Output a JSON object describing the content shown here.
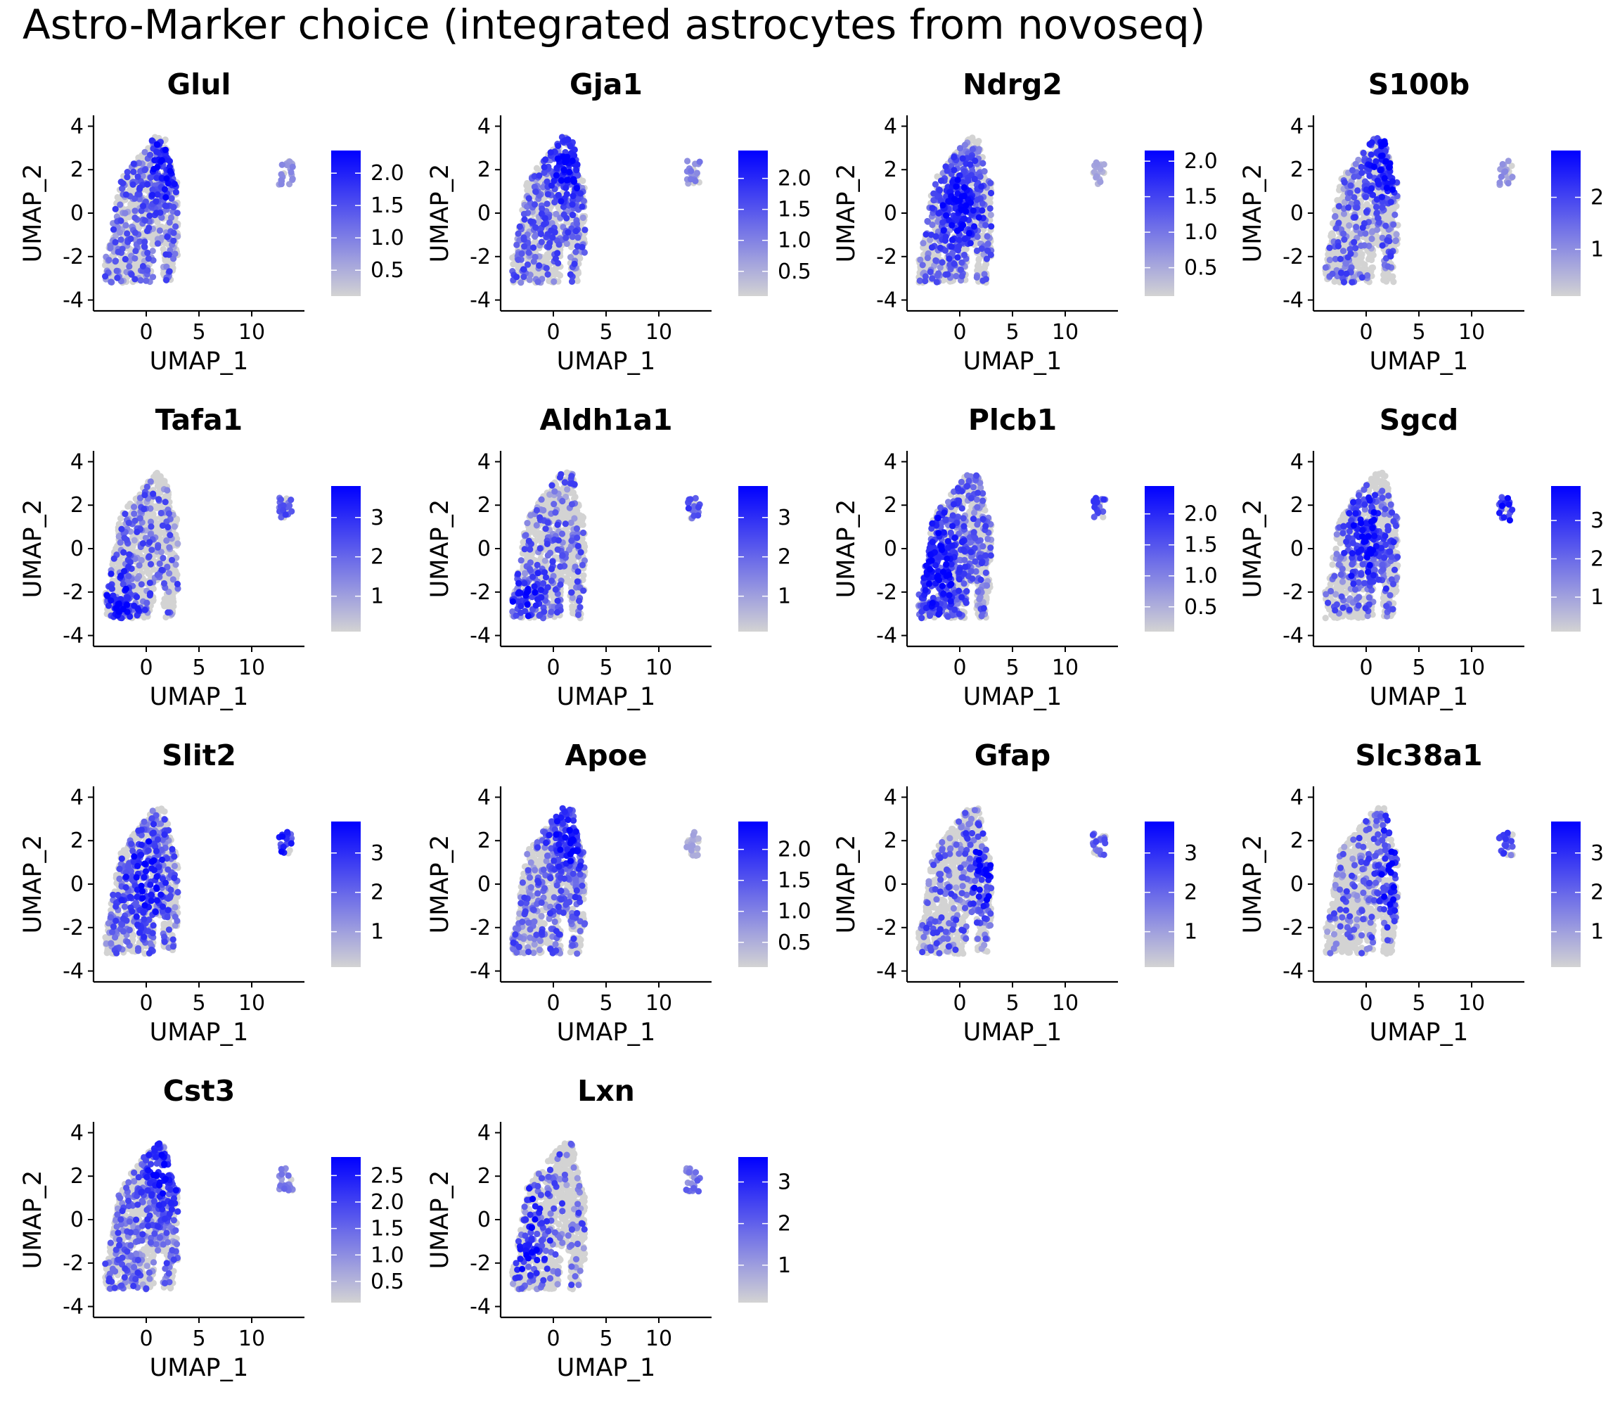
{
  "figure": {
    "title": "Astro-Marker choice (integrated astrocytes from novoseq)"
  },
  "colors": {
    "low": "#d3d3d3",
    "high": "#0000ff"
  },
  "chart_data": {
    "type": "scatter",
    "grid": false,
    "shared": {
      "xlabel": "UMAP_1",
      "ylabel": "UMAP_2",
      "xticks": [
        0,
        5,
        10
      ],
      "yticks": [
        -4,
        -2,
        0,
        2,
        4
      ],
      "xlim": [
        -5,
        15
      ],
      "ylim": [
        -4.5,
        4.5
      ]
    },
    "panels": [
      {
        "gene": "Glul",
        "scale_max": 2.35,
        "legend_ticks": [
          "0.5",
          "1.0",
          "1.5",
          "2.0"
        ],
        "legend_values": [
          0.5,
          1.0,
          1.5,
          2.0
        ],
        "expr_fraction": 0.55,
        "island_level": 0.3,
        "hot_region": "top-right"
      },
      {
        "gene": "Gja1",
        "scale_max": 2.45,
        "legend_ticks": [
          "0.5",
          "1.0",
          "1.5",
          "2.0"
        ],
        "legend_values": [
          0.5,
          1.0,
          1.5,
          2.0
        ],
        "expr_fraction": 0.6,
        "island_level": 0.35,
        "hot_region": "top-right"
      },
      {
        "gene": "Ndrg2",
        "scale_max": 2.15,
        "legend_ticks": [
          "0.5",
          "1.0",
          "1.5",
          "2.0"
        ],
        "legend_values": [
          0.5,
          1.0,
          1.5,
          2.0
        ],
        "expr_fraction": 0.6,
        "island_level": 0.2,
        "hot_region": "center"
      },
      {
        "gene": "S100b",
        "scale_max": 2.9,
        "legend_ticks": [
          "1",
          "2"
        ],
        "legend_values": [
          1,
          2
        ],
        "expr_fraction": 0.5,
        "island_level": 0.3,
        "hot_region": "top-right"
      },
      {
        "gene": "Tafa1",
        "scale_max": 3.8,
        "legend_ticks": [
          "1",
          "2",
          "3"
        ],
        "legend_values": [
          1,
          2,
          3
        ],
        "expr_fraction": 0.4,
        "island_level": 0.6,
        "hot_region": "bottom-left"
      },
      {
        "gene": "Aldh1a1",
        "scale_max": 3.8,
        "legend_ticks": [
          "1",
          "2",
          "3"
        ],
        "legend_values": [
          1,
          2,
          3
        ],
        "expr_fraction": 0.45,
        "island_level": 0.6,
        "hot_region": "bottom-left"
      },
      {
        "gene": "Plcb1",
        "scale_max": 2.45,
        "legend_ticks": [
          "0.5",
          "1.0",
          "1.5",
          "2.0"
        ],
        "legend_values": [
          0.5,
          1.0,
          1.5,
          2.0
        ],
        "expr_fraction": 0.65,
        "island_level": 0.6,
        "hot_region": "left"
      },
      {
        "gene": "Sgcd",
        "scale_max": 3.9,
        "legend_ticks": [
          "1",
          "2",
          "3"
        ],
        "legend_values": [
          1,
          2,
          3
        ],
        "expr_fraction": 0.45,
        "island_level": 0.8,
        "hot_region": "center"
      },
      {
        "gene": "Slit2",
        "scale_max": 3.8,
        "legend_ticks": [
          "1",
          "2",
          "3"
        ],
        "legend_values": [
          1,
          2,
          3
        ],
        "expr_fraction": 0.5,
        "island_level": 0.75,
        "hot_region": "center"
      },
      {
        "gene": "Apoe",
        "scale_max": 2.45,
        "legend_ticks": [
          "0.5",
          "1.0",
          "1.5",
          "2.0"
        ],
        "legend_values": [
          0.5,
          1.0,
          1.5,
          2.0
        ],
        "expr_fraction": 0.65,
        "island_level": 0.2,
        "hot_region": "top-right"
      },
      {
        "gene": "Gfap",
        "scale_max": 3.8,
        "legend_ticks": [
          "1",
          "2",
          "3"
        ],
        "legend_values": [
          1,
          2,
          3
        ],
        "expr_fraction": 0.35,
        "island_level": 0.55,
        "hot_region": "right"
      },
      {
        "gene": "Slc38a1",
        "scale_max": 3.8,
        "legend_ticks": [
          "1",
          "2",
          "3"
        ],
        "legend_values": [
          1,
          2,
          3
        ],
        "expr_fraction": 0.4,
        "island_level": 0.6,
        "hot_region": "right"
      },
      {
        "gene": "Cst3",
        "scale_max": 2.85,
        "legend_ticks": [
          "0.5",
          "1.0",
          "1.5",
          "2.0",
          "2.5"
        ],
        "legend_values": [
          0.5,
          1.0,
          1.5,
          2.0,
          2.5
        ],
        "expr_fraction": 0.65,
        "island_level": 0.4,
        "hot_region": "top-right"
      },
      {
        "gene": "Lxn",
        "scale_max": 3.6,
        "legend_ticks": [
          "1",
          "2",
          "3"
        ],
        "legend_values": [
          1,
          2,
          3
        ],
        "expr_fraction": 0.25,
        "island_level": 0.45,
        "hot_region": "left"
      }
    ]
  }
}
